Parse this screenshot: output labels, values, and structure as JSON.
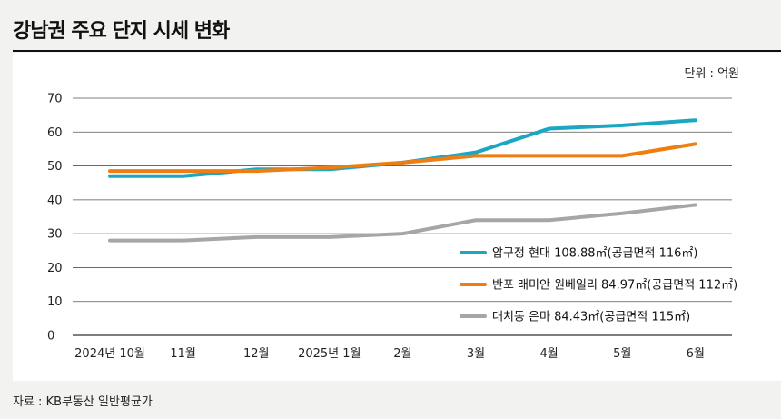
{
  "title": "강남권 주요 단지 시세 변화",
  "unit_label": "단위 : 억원",
  "source_label": "자료 : KB부동산 일반평균가",
  "colors": {
    "background": "#f2f2f0",
    "panel": "#ffffff",
    "grid": "#555555",
    "series": [
      "#1aa7c4",
      "#ee7d12",
      "#a6a6a6"
    ]
  },
  "chart_data": {
    "type": "line",
    "title": "강남권 주요 단지 시세 변화",
    "ylabel": "단위 : 억원",
    "xlabel": "",
    "categories": [
      "2024년 10월",
      "11월",
      "12월",
      "2025년 1월",
      "2월",
      "3월",
      "4월",
      "5월",
      "6월"
    ],
    "ylim": [
      0,
      70
    ],
    "yticks": [
      0,
      10,
      20,
      30,
      40,
      50,
      60,
      70
    ],
    "grid": true,
    "legend_position": "bottom-right",
    "series": [
      {
        "name": "압구정 현대 108.88㎡(공급면적 116㎡)",
        "color": "#1aa7c4",
        "values": [
          47,
          47,
          49,
          49,
          51,
          54,
          61,
          62,
          63.5
        ]
      },
      {
        "name": "반포 래미안 원베일리 84.97㎡(공급면적 112㎡)",
        "color": "#ee7d12",
        "values": [
          48.5,
          48.5,
          48.5,
          49.5,
          51,
          53,
          53,
          53,
          56.5
        ]
      },
      {
        "name": "대치동 은마 84.43㎡(공급면적 115㎡)",
        "color": "#a6a6a6",
        "values": [
          28,
          28,
          29,
          29,
          30,
          34,
          34,
          36,
          38.5
        ]
      }
    ]
  }
}
